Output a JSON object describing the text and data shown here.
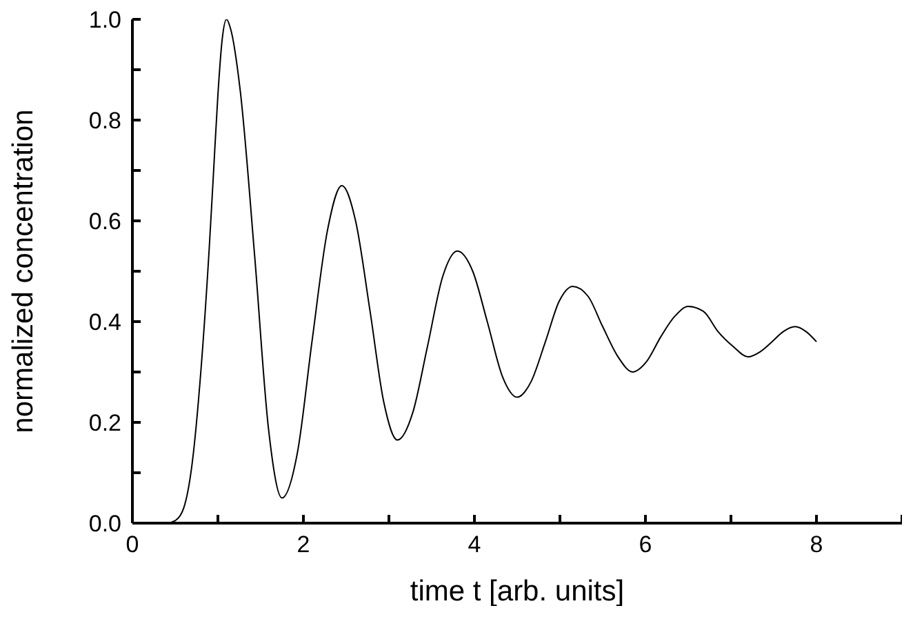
{
  "chart_data": {
    "type": "line",
    "xlabel": "time t [arb. units]",
    "ylabel": "normalized concentration",
    "x": [
      0,
      0.4,
      0.5,
      0.6,
      0.7,
      0.8,
      0.9,
      0.95,
      1,
      1.05,
      1.1,
      1.15,
      1.26,
      1.43,
      1.59,
      1.75,
      1.93,
      2.1,
      2.28,
      2.45,
      2.61,
      2.78,
      2.94,
      3.1,
      3.28,
      3.45,
      3.63,
      3.8,
      3.98,
      4.15,
      4.33,
      4.5,
      4.66,
      4.83,
      4.99,
      5.15,
      5.33,
      5.5,
      5.68,
      5.85,
      6.01,
      6.18,
      6.34,
      6.5,
      6.68,
      6.85,
      7.03,
      7.2,
      7.34,
      7.48,
      7.61,
      7.75,
      7.88,
      8
    ],
    "series": [
      {
        "color": "#000000",
        "values": [
          0,
          0,
          0.005,
          0.03,
          0.12,
          0.3,
          0.55,
          0.7,
          0.85,
          0.96,
          1,
          0.98,
          0.86,
          0.53,
          0.19,
          0.05,
          0.14,
          0.36,
          0.58,
          0.67,
          0.6,
          0.42,
          0.24,
          0.165,
          0.22,
          0.35,
          0.49,
          0.54,
          0.5,
          0.4,
          0.29,
          0.25,
          0.28,
          0.36,
          0.44,
          0.47,
          0.45,
          0.39,
          0.33,
          0.3,
          0.32,
          0.37,
          0.41,
          0.43,
          0.42,
          0.38,
          0.35,
          0.33,
          0.34,
          0.36,
          0.38,
          0.39,
          0.38,
          0.36
        ]
      }
    ],
    "xlim": [
      0,
      9
    ],
    "xticks": [
      0,
      {
        "value": 1,
        "label": null
      },
      2,
      {
        "value": 3,
        "label": null
      },
      4,
      {
        "value": 5,
        "label": null
      },
      6,
      {
        "value": 7,
        "label": null
      },
      8,
      {
        "value": 9,
        "label": null
      }
    ],
    "ylim": [
      0,
      1
    ],
    "yticks": [
      {
        "value": 0,
        "label": "0.0"
      },
      {
        "value": 0.1,
        "label": null
      },
      {
        "value": 0.2,
        "label": "0.2"
      },
      {
        "value": 0.3,
        "label": null
      },
      {
        "value": 0.4,
        "label": "0.4"
      },
      {
        "value": 0.5,
        "label": null
      },
      {
        "value": 0.6,
        "label": "0.6"
      },
      {
        "value": 0.7,
        "label": null
      },
      {
        "value": 0.8,
        "label": "0.8"
      },
      {
        "value": 0.9,
        "label": null
      },
      {
        "value": 1,
        "label": "1.0"
      }
    ],
    "grid": false,
    "legend": false,
    "marker": "none",
    "line_style": "solid"
  }
}
